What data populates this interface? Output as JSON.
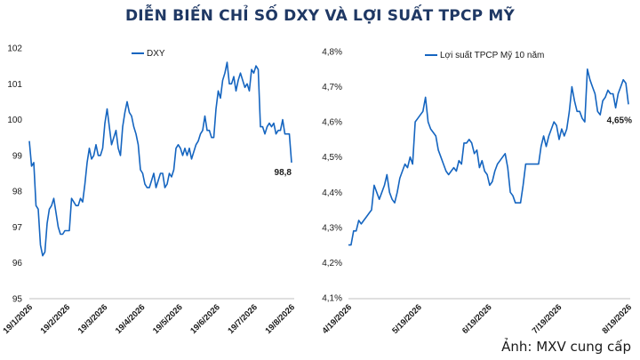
{
  "title": "DIỄN BIẾN CHỈ SỐ DXY VÀ LỢI SUẤT TPCP MỸ",
  "caption": "Ảnh: MXV cung cấp",
  "colors": {
    "line": "#1565c0",
    "title": "#1f3864",
    "axis": "#bfbfbf"
  },
  "chart_data": [
    {
      "type": "line",
      "title": "",
      "series": [
        {
          "name": "DXY",
          "values": [
            99.4,
            98.7,
            98.8,
            97.6,
            97.5,
            96.5,
            96.2,
            96.3,
            97.1,
            97.5,
            97.6,
            97.8,
            97.4,
            97.0,
            96.8,
            96.8,
            96.9,
            96.9,
            96.9,
            97.8,
            97.7,
            97.6,
            97.6,
            97.8,
            97.7,
            98.2,
            98.8,
            99.2,
            98.9,
            99.0,
            99.3,
            99.0,
            99.0,
            99.2,
            99.9,
            100.3,
            99.8,
            99.3,
            99.5,
            99.7,
            99.2,
            99.0,
            99.8,
            100.2,
            100.5,
            100.2,
            100.1,
            99.8,
            99.6,
            99.3,
            98.6,
            98.5,
            98.2,
            98.1,
            98.1,
            98.3,
            98.5,
            98.1,
            98.3,
            98.5,
            98.5,
            98.1,
            98.2,
            98.5,
            98.4,
            98.6,
            99.2,
            99.3,
            99.2,
            99.0,
            99.2,
            99.0,
            99.2,
            98.9,
            99.1,
            99.3,
            99.4,
            99.6,
            99.7,
            100.1,
            99.7,
            99.7,
            99.5,
            99.5,
            100.3,
            100.8,
            100.6,
            101.1,
            101.3,
            101.6,
            101.0,
            101.0,
            101.2,
            100.8,
            101.1,
            101.3,
            101.1,
            100.9,
            101.0,
            100.8,
            101.4,
            101.3,
            101.5,
            101.4,
            99.8,
            99.8,
            99.6,
            99.8,
            99.9,
            99.8,
            99.9,
            99.6,
            99.7,
            99.7,
            100.0,
            99.6,
            99.6,
            99.6,
            98.8
          ],
          "last_label": "98,8"
        }
      ],
      "x_tick_labels": [
        "19/1/2026",
        "19/2/2026",
        "19/3/2026",
        "19/4/2026",
        "19/5/2026",
        "19/6/2026",
        "19/7/2026",
        "19/8/2026"
      ],
      "y_tick_labels": [
        "95",
        "96",
        "97",
        "98",
        "99",
        "100",
        "101",
        "102"
      ],
      "ylim": [
        95,
        102
      ],
      "grid": false,
      "legend": "top-left"
    },
    {
      "type": "line",
      "title": "",
      "series": [
        {
          "name": "Lợi suất TPCP Mỹ 10 năm",
          "values": [
            4.25,
            4.25,
            4.29,
            4.29,
            4.32,
            4.31,
            4.32,
            4.33,
            4.34,
            4.35,
            4.42,
            4.4,
            4.38,
            4.4,
            4.42,
            4.45,
            4.4,
            4.38,
            4.37,
            4.4,
            4.44,
            4.46,
            4.48,
            4.47,
            4.5,
            4.48,
            4.6,
            4.61,
            4.62,
            4.63,
            4.67,
            4.6,
            4.58,
            4.57,
            4.56,
            4.52,
            4.5,
            4.48,
            4.46,
            4.45,
            4.46,
            4.47,
            4.46,
            4.49,
            4.48,
            4.54,
            4.54,
            4.55,
            4.54,
            4.51,
            4.52,
            4.47,
            4.49,
            4.46,
            4.45,
            4.42,
            4.43,
            4.46,
            4.48,
            4.49,
            4.5,
            4.51,
            4.47,
            4.4,
            4.39,
            4.37,
            4.37,
            4.37,
            4.42,
            4.48,
            4.48,
            4.48,
            4.48,
            4.48,
            4.48,
            4.53,
            4.56,
            4.53,
            4.56,
            4.58,
            4.6,
            4.59,
            4.55,
            4.58,
            4.56,
            4.58,
            4.63,
            4.7,
            4.66,
            4.63,
            4.63,
            4.61,
            4.6,
            4.75,
            4.72,
            4.7,
            4.68,
            4.63,
            4.62,
            4.66,
            4.67,
            4.69,
            4.68,
            4.68,
            4.64,
            4.68,
            4.7,
            4.72,
            4.71,
            4.65
          ],
          "last_label": "4,65%"
        }
      ],
      "x_tick_labels": [
        "4/19/2026",
        "5/19/2026",
        "6/19/2026",
        "7/19/2026",
        "8/19/2026"
      ],
      "y_tick_labels": [
        "4,1%",
        "4,2%",
        "4,3%",
        "4,4%",
        "4,5%",
        "4,6%",
        "4,7%",
        "4,8%"
      ],
      "ylim": [
        4.1,
        4.8
      ],
      "grid": false,
      "legend": "top-left"
    }
  ]
}
